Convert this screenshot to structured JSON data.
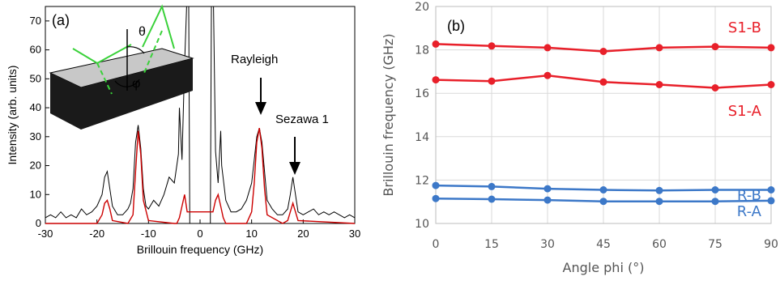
{
  "chart_data": [
    {
      "type": "line",
      "panel_label": "(a)",
      "xlabel": "Brillouin frequency (GHz)",
      "ylabel": "Intensity (arb. units)",
      "xlim": [
        -30,
        30
      ],
      "ylim": [
        0,
        75
      ],
      "xticks": [
        "-30",
        "-20",
        "-10",
        "0",
        "10",
        "20",
        "30"
      ],
      "yticks": [
        "0",
        "10",
        "20",
        "30",
        "40",
        "50",
        "60",
        "70"
      ],
      "inset_labels": {
        "theta": "θ",
        "phi": "φ"
      },
      "annotations": [
        {
          "text": "Rayleigh",
          "x": 11.5,
          "y": 33
        },
        {
          "text": "Sezawa 1",
          "x": 18,
          "y": 12
        }
      ],
      "series": [
        {
          "color": "#000000",
          "x": [
            -30,
            -29,
            -28,
            -27,
            -26,
            -25,
            -24,
            -23,
            -22,
            -21,
            -20,
            -19,
            -18.5,
            -18,
            -17.5,
            -17,
            -16,
            -15,
            -14,
            -13.5,
            -13,
            -12.5,
            -12,
            -11.5,
            -11,
            -10.5,
            -10,
            -9,
            -8,
            -7,
            -6,
            -5,
            -4.2,
            -4,
            -3.5,
            -3,
            -2.6,
            -2.4,
            -2.2,
            -2,
            -1.5,
            -1,
            -0.5,
            0,
            0.5,
            1,
            1.5,
            2,
            2.2,
            2.4,
            2.6,
            3,
            3.5,
            4,
            4.2,
            5,
            6,
            7,
            8,
            9,
            10,
            10.5,
            11,
            11.5,
            12,
            12.5,
            13,
            14,
            15,
            16,
            17,
            17.5,
            18,
            18.5,
            19,
            20,
            21,
            22,
            23,
            24,
            25,
            26,
            27,
            28,
            29,
            30
          ],
          "y": [
            2,
            3,
            2,
            4,
            2,
            3,
            2,
            5,
            3,
            4,
            6,
            10,
            16,
            18,
            12,
            6,
            3,
            3,
            5,
            7,
            12,
            28,
            34,
            26,
            12,
            6,
            5,
            8,
            6,
            10,
            16,
            14,
            24,
            40,
            22,
            55,
            75,
            75,
            75,
            0,
            0,
            0,
            0,
            0,
            0,
            0,
            0,
            0,
            75,
            75,
            75,
            25,
            14,
            32,
            20,
            8,
            4,
            4,
            5,
            8,
            14,
            22,
            30,
            33,
            28,
            18,
            8,
            5,
            3,
            3,
            5,
            10,
            16,
            10,
            4,
            3,
            4,
            5,
            3,
            4,
            3,
            4,
            3,
            2,
            3,
            2
          ]
        },
        {
          "color": "#cc0000",
          "x": [
            -30,
            -20,
            -19,
            -18.5,
            -18,
            -17.5,
            -17,
            -14,
            -13,
            -12.5,
            -12,
            -11.5,
            -11,
            -10,
            -5,
            -4.5,
            -4,
            -3.5,
            -3,
            -2.5,
            2.5,
            3,
            3.5,
            4,
            4.5,
            5,
            9,
            10,
            10.5,
            11,
            11.5,
            12,
            12.5,
            13,
            16,
            17,
            17.5,
            18,
            18.5,
            19,
            30
          ],
          "y": [
            0,
            0,
            3,
            7,
            8,
            5,
            1,
            0,
            3,
            18,
            32,
            24,
            8,
            1,
            0,
            0,
            2,
            6,
            10,
            4,
            4,
            8,
            10,
            6,
            2,
            0,
            0,
            4,
            14,
            28,
            33,
            26,
            12,
            3,
            0,
            1,
            4,
            7,
            4,
            1,
            0
          ]
        }
      ]
    },
    {
      "type": "line",
      "panel_label": "(b)",
      "xlabel": "Angle phi (°)",
      "ylabel": "Brillouin frequency (GHz)",
      "xlim": [
        0,
        90
      ],
      "ylim": [
        10,
        20
      ],
      "grid": true,
      "xticks": [
        "0",
        "15",
        "30",
        "45",
        "60",
        "75",
        "90"
      ],
      "yticks": [
        "10",
        "12",
        "14",
        "16",
        "18",
        "20"
      ],
      "series": [
        {
          "name": "S1-B",
          "color": "#e8202a",
          "x": [
            0,
            15,
            30,
            45,
            60,
            75,
            90
          ],
          "y": [
            18.27,
            18.18,
            18.1,
            17.93,
            18.1,
            18.15,
            18.1
          ]
        },
        {
          "name": "S1-A",
          "color": "#e8202a",
          "x": [
            0,
            15,
            30,
            45,
            60,
            75,
            90
          ],
          "y": [
            16.62,
            16.56,
            16.82,
            16.52,
            16.4,
            16.25,
            16.4
          ]
        },
        {
          "name": "R-B",
          "color": "#3c78c8",
          "x": [
            0,
            15,
            30,
            45,
            60,
            75,
            90
          ],
          "y": [
            11.75,
            11.7,
            11.6,
            11.55,
            11.52,
            11.55,
            11.55
          ]
        },
        {
          "name": "R-A",
          "color": "#3c78c8",
          "x": [
            0,
            15,
            30,
            45,
            60,
            75,
            90
          ],
          "y": [
            11.15,
            11.12,
            11.08,
            11.02,
            11.02,
            11.02,
            11.05
          ]
        }
      ]
    }
  ]
}
